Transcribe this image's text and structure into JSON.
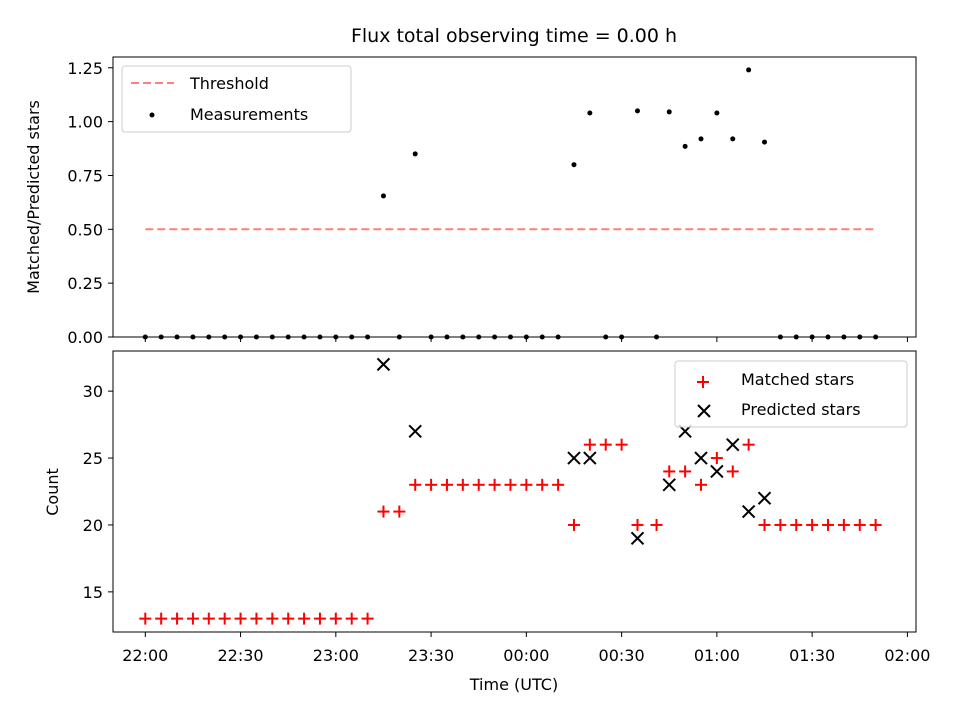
{
  "colors": {
    "threshold": "#ff7f7f",
    "measurements": "#000000",
    "matched": "#ff0000",
    "predicted": "#000000"
  },
  "x_ticks": [
    "22:00",
    "22:30",
    "23:00",
    "23:30",
    "00:00",
    "00:30",
    "01:00",
    "01:30",
    "02:00"
  ],
  "chart_data": [
    {
      "type": "scatter",
      "title": "Flux total observing time = 0.00 h",
      "xlabel": "",
      "ylabel": "Matched/Predicted stars",
      "xlim": [
        "22:00",
        "02:00"
      ],
      "ylim": [
        0,
        1.3
      ],
      "y_ticks": [
        "0.00",
        "0.25",
        "0.50",
        "0.75",
        "1.00",
        "1.25"
      ],
      "legend_position": "top-left",
      "series": [
        {
          "name": "Threshold",
          "kind": "dashed-line",
          "points": [
            [
              "22:00",
              0.5
            ],
            [
              "01:50",
              0.5
            ]
          ]
        },
        {
          "name": "Measurements",
          "kind": "dot",
          "points": [
            [
              "22:00",
              0
            ],
            [
              "22:05",
              0
            ],
            [
              "22:10",
              0
            ],
            [
              "22:15",
              0
            ],
            [
              "22:20",
              0
            ],
            [
              "22:25",
              0
            ],
            [
              "22:30",
              0
            ],
            [
              "22:35",
              0
            ],
            [
              "22:40",
              0
            ],
            [
              "22:45",
              0
            ],
            [
              "22:50",
              0
            ],
            [
              "22:55",
              0
            ],
            [
              "23:00",
              0
            ],
            [
              "23:05",
              0
            ],
            [
              "23:10",
              0
            ],
            [
              "23:15",
              0.655
            ],
            [
              "23:20",
              0
            ],
            [
              "23:25",
              0.85
            ],
            [
              "23:30",
              0
            ],
            [
              "23:35",
              0
            ],
            [
              "23:40",
              0
            ],
            [
              "23:45",
              0
            ],
            [
              "23:50",
              0
            ],
            [
              "23:55",
              0
            ],
            [
              "00:00",
              0
            ],
            [
              "00:05",
              0
            ],
            [
              "00:10",
              0
            ],
            [
              "00:15",
              0.8
            ],
            [
              "00:20",
              1.04
            ],
            [
              "00:25",
              0
            ],
            [
              "00:30",
              0
            ],
            [
              "00:35",
              1.05
            ],
            [
              "00:41",
              0
            ],
            [
              "00:45",
              1.045
            ],
            [
              "00:50",
              0.885
            ],
            [
              "00:55",
              0.92
            ],
            [
              "01:00",
              1.04
            ],
            [
              "01:05",
              0.92
            ],
            [
              "01:10",
              1.24
            ],
            [
              "01:15",
              0.905
            ],
            [
              "01:20",
              0
            ],
            [
              "01:25",
              0
            ],
            [
              "01:30",
              0
            ],
            [
              "01:35",
              0
            ],
            [
              "01:40",
              0
            ],
            [
              "01:45",
              0
            ],
            [
              "01:50",
              0
            ]
          ]
        }
      ]
    },
    {
      "type": "scatter",
      "title": "",
      "xlabel": "Time (UTC)",
      "ylabel": "Count",
      "xlim": [
        "22:00",
        "02:00"
      ],
      "ylim": [
        12,
        33
      ],
      "y_ticks": [
        "15",
        "20",
        "25",
        "30"
      ],
      "legend_position": "top-right",
      "series": [
        {
          "name": "Matched stars",
          "marker": "+",
          "points": [
            [
              "22:00",
              13
            ],
            [
              "22:05",
              13
            ],
            [
              "22:10",
              13
            ],
            [
              "22:15",
              13
            ],
            [
              "22:20",
              13
            ],
            [
              "22:25",
              13
            ],
            [
              "22:30",
              13
            ],
            [
              "22:35",
              13
            ],
            [
              "22:40",
              13
            ],
            [
              "22:45",
              13
            ],
            [
              "22:50",
              13
            ],
            [
              "22:55",
              13
            ],
            [
              "23:00",
              13
            ],
            [
              "23:05",
              13
            ],
            [
              "23:10",
              13
            ],
            [
              "23:15",
              21
            ],
            [
              "23:20",
              21
            ],
            [
              "23:25",
              23
            ],
            [
              "23:30",
              23
            ],
            [
              "23:35",
              23
            ],
            [
              "23:40",
              23
            ],
            [
              "23:45",
              23
            ],
            [
              "23:50",
              23
            ],
            [
              "23:55",
              23
            ],
            [
              "00:00",
              23
            ],
            [
              "00:05",
              23
            ],
            [
              "00:10",
              23
            ],
            [
              "00:15",
              20
            ],
            [
              "00:20",
              26
            ],
            [
              "00:25",
              26
            ],
            [
              "00:30",
              26
            ],
            [
              "00:35",
              20
            ],
            [
              "00:41",
              20
            ],
            [
              "00:45",
              24
            ],
            [
              "00:50",
              24
            ],
            [
              "00:55",
              23
            ],
            [
              "01:00",
              25
            ],
            [
              "01:05",
              24
            ],
            [
              "01:10",
              26
            ],
            [
              "01:15",
              20
            ],
            [
              "01:20",
              20
            ],
            [
              "01:25",
              20
            ],
            [
              "01:30",
              20
            ],
            [
              "01:35",
              20
            ],
            [
              "01:40",
              20
            ],
            [
              "01:45",
              20
            ],
            [
              "01:50",
              20
            ]
          ]
        },
        {
          "name": "Predicted stars",
          "marker": "x",
          "points": [
            [
              "23:15",
              32
            ],
            [
              "23:25",
              27
            ],
            [
              "00:15",
              25
            ],
            [
              "00:20",
              25
            ],
            [
              "00:35",
              19
            ],
            [
              "00:45",
              23
            ],
            [
              "00:50",
              27
            ],
            [
              "00:55",
              25
            ],
            [
              "01:00",
              24
            ],
            [
              "01:05",
              26
            ],
            [
              "01:10",
              21
            ],
            [
              "01:15",
              22
            ]
          ]
        }
      ]
    }
  ]
}
